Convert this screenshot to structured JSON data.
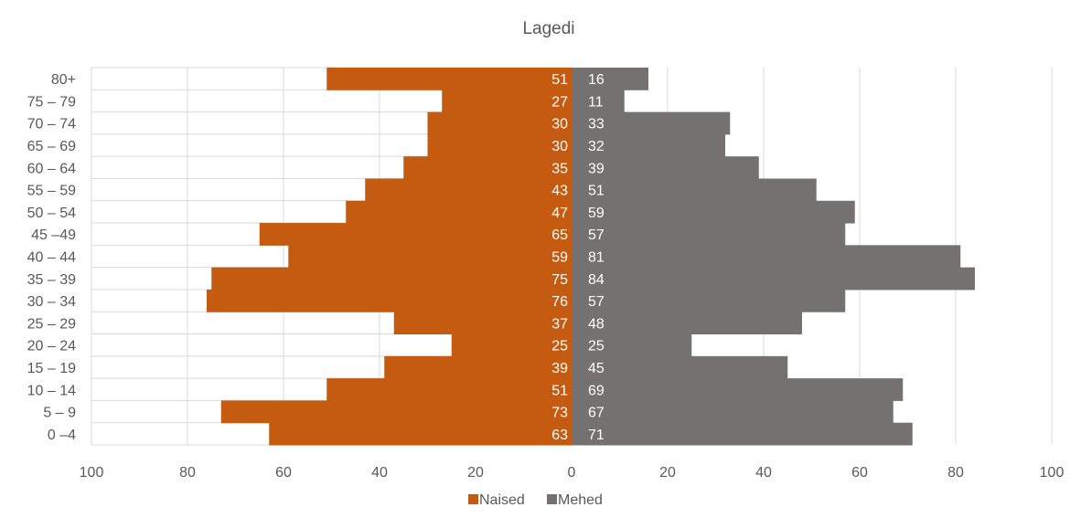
{
  "chart_data": {
    "type": "bar",
    "orientation": "horizontal-diverging",
    "title": "Lagedi",
    "categories": [
      "80+",
      "75 – 79",
      "70 – 74",
      "65 – 69",
      "60 – 64",
      "55 – 59",
      "50 – 54",
      "45 –49",
      "40 – 44",
      "35 – 39",
      "30 – 34",
      "25 – 29",
      "20 – 24",
      "15 – 19",
      "10 – 14",
      "5 – 9",
      "0 –4"
    ],
    "series": [
      {
        "name": "Naised",
        "color": "#C55A11",
        "direction": "left",
        "values": [
          51,
          27,
          30,
          30,
          35,
          43,
          47,
          65,
          59,
          75,
          76,
          37,
          25,
          39,
          51,
          73,
          63
        ]
      },
      {
        "name": "Mehed",
        "color": "#767171",
        "direction": "right",
        "values": [
          16,
          11,
          33,
          32,
          39,
          51,
          59,
          57,
          81,
          84,
          57,
          48,
          25,
          45,
          69,
          67,
          71
        ]
      }
    ],
    "xlim": [
      -100,
      100
    ],
    "xticks": [
      -100,
      -80,
      -60,
      -40,
      -20,
      0,
      20,
      40,
      60,
      80,
      100
    ],
    "xtick_labels": [
      "100",
      "80",
      "60",
      "40",
      "20",
      "0",
      "20",
      "40",
      "60",
      "80",
      "100"
    ],
    "xlabel": "",
    "ylabel": "",
    "grid": true,
    "legend": "bottom",
    "data_labels": true
  }
}
